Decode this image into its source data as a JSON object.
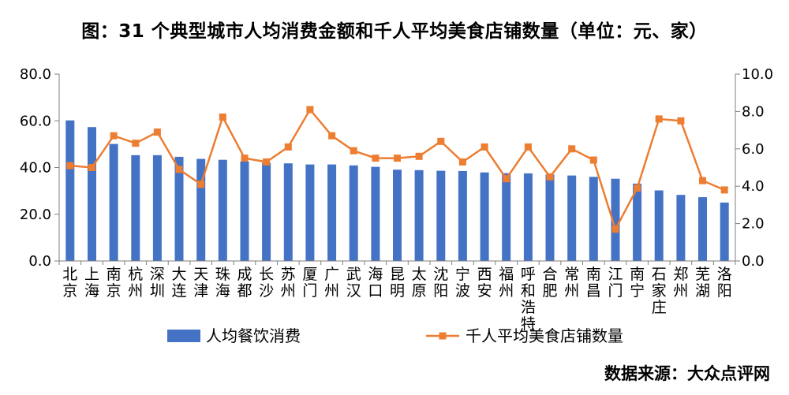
{
  "chart_data": {
    "type": "bar",
    "title": "图：31 个典型城市人均消费金额和千人平均美食店铺数量（单位：元、家）",
    "source": "数据来源：大众点评网",
    "categories": [
      "北京",
      "上海",
      "南京",
      "杭州",
      "深圳",
      "大连",
      "天津",
      "珠海",
      "成都",
      "长沙",
      "苏州",
      "厦门",
      "广州",
      "武汉",
      "海口",
      "昆明",
      "太原",
      "沈阳",
      "宁波",
      "西安",
      "福州",
      "呼和浩特",
      "合肥",
      "常州",
      "南昌",
      "江门",
      "南宁",
      "石家庄",
      "郑州",
      "芜湖",
      "洛阳"
    ],
    "y_left": {
      "ylim": [
        0,
        80
      ],
      "ticks": [
        "0.0",
        "20.0",
        "40.0",
        "60.0",
        "80.0"
      ]
    },
    "y_right": {
      "ylim": [
        0,
        10
      ],
      "ticks": [
        "0.0",
        "2.0",
        "4.0",
        "6.0",
        "8.0",
        "10.0"
      ]
    },
    "legend_position": "bottom",
    "grid": false,
    "series": [
      {
        "name": "人均餐饮消费",
        "type": "bar",
        "axis": "left",
        "color": "#4472C4",
        "values": [
          60.2,
          57.3,
          50.1,
          45.3,
          45.3,
          44.6,
          43.7,
          43.3,
          42.6,
          42.0,
          41.8,
          41.3,
          41.3,
          40.9,
          40.3,
          39.1,
          38.9,
          38.6,
          38.5,
          37.9,
          37.6,
          37.5,
          37.0,
          36.6,
          36.0,
          35.2,
          33.1,
          30.2,
          28.3,
          27.3,
          25.0
        ]
      },
      {
        "name": "千人平均美食店铺数量",
        "type": "line",
        "axis": "right",
        "color": "#ED7D31",
        "values": [
          5.1,
          5.0,
          6.7,
          6.3,
          6.9,
          4.9,
          4.1,
          7.7,
          5.5,
          5.3,
          6.1,
          8.1,
          6.7,
          5.9,
          5.5,
          5.5,
          5.6,
          6.4,
          5.3,
          6.1,
          4.4,
          6.1,
          4.5,
          6.0,
          5.4,
          1.7,
          3.9,
          7.6,
          7.5,
          4.3,
          3.8
        ]
      }
    ]
  }
}
